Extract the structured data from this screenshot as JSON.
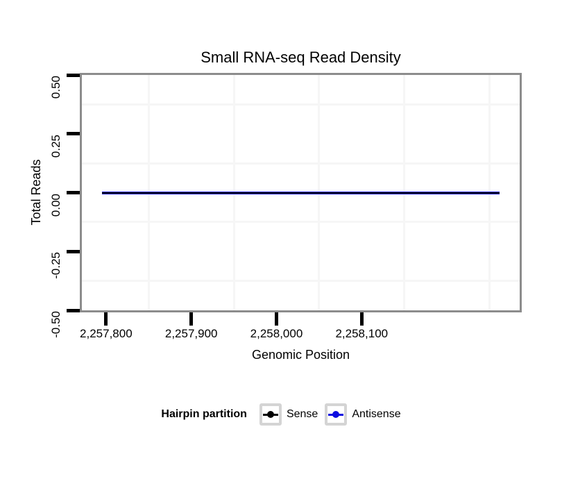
{
  "figure": {
    "title": "Small RNA-seq Read Density",
    "xlabel": "Genomic Position",
    "ylabel": "Total Reads"
  },
  "legend": {
    "title": "Hairpin partition",
    "items": [
      {
        "label": "Sense",
        "color": "#000000"
      },
      {
        "label": "Antisense",
        "color": "#0d0de0"
      }
    ]
  },
  "colors": {
    "panel_border": "#8c8c8c",
    "axis_tick": "#000000",
    "minor_grid": "#f6f6f6",
    "legend_key_border": "#d4d4d4",
    "overlap_line_edge": "#3d3d85"
  },
  "chart_data": {
    "type": "line",
    "title": "Small RNA-seq Read Density",
    "xlabel": "Genomic Position",
    "ylabel": "Total Reads",
    "xlim": [
      2257771.6,
      2258285.4
    ],
    "ylim": [
      -0.5,
      0.5
    ],
    "x_ticks": [
      {
        "value": 2257800,
        "label": "2,257,800"
      },
      {
        "value": 2257900,
        "label": "2,257,900"
      },
      {
        "value": 2258000,
        "label": "2,258,000"
      },
      {
        "value": 2258100,
        "label": "2,258,100"
      }
    ],
    "y_ticks": [
      {
        "value": 0.5,
        "label": "0.50"
      },
      {
        "value": 0.25,
        "label": "0.25"
      },
      {
        "value": 0.0,
        "label": "0.00"
      },
      {
        "value": -0.25,
        "label": "-0.25"
      },
      {
        "value": -0.5,
        "label": "-0.50"
      }
    ],
    "x_minor_gridlines": [
      2257850,
      2257950,
      2258050,
      2258150,
      2258250
    ],
    "y_minor_gridlines": [
      0.375,
      0.125,
      -0.125,
      -0.375
    ],
    "grid": "minor-only",
    "legend_title": "Hairpin partition",
    "legend_position": "bottom",
    "series": [
      {
        "name": "Sense",
        "color": "#000000",
        "x": [
          2257795,
          2258262
        ],
        "y": [
          0,
          0
        ]
      },
      {
        "name": "Antisense",
        "color": "#0d0de0",
        "x": [
          2257795,
          2258262
        ],
        "y": [
          0,
          0
        ]
      }
    ]
  }
}
